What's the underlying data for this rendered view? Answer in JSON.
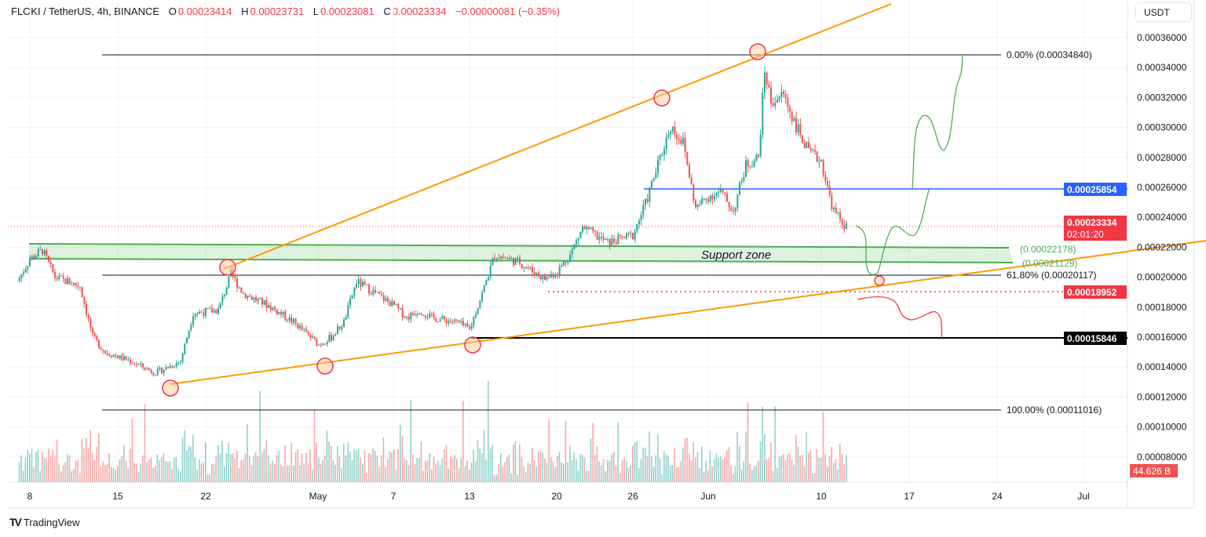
{
  "header": {
    "symbol": "FLOKI / TetherUS, 4h, BINANCE",
    "open_label": "O",
    "open": "0.00023414",
    "high_label": "H",
    "high": "0.00023731",
    "low_label": "L",
    "low": "0.00023081",
    "close_label": "C",
    "close": "0.00023334",
    "change": "−0.00000081 (−0.35%)"
  },
  "currency": "USDT",
  "price_axis": [
    "0.00036000",
    "0.00034000",
    "0.00032000",
    "0.00030000",
    "0.00028000",
    "0.00026000",
    "0.00024000",
    "0.00022000",
    "0.00020000",
    "0.00018000",
    "0.00016000",
    "0.00014000",
    "0.00012000",
    "0.00010000",
    "0.00008000"
  ],
  "price_tags": {
    "resistance": "0.00025854",
    "current": "0.00023334",
    "countdown": "02:01:20",
    "red_level": "0.00018952",
    "support": "0.00015846",
    "volume": "44.626 B"
  },
  "time_axis": [
    "8",
    "15",
    "22",
    "May",
    "7",
    "13",
    "20",
    "26",
    "Jun",
    "10",
    "17",
    "24",
    "Jul"
  ],
  "annotations": {
    "fib_0": "0.00% (0.00034840)",
    "fib_618": "61.80% (0.00020117)",
    "fib_100": "100.00% (0.00011016)",
    "zone_top": "(0.00022178)",
    "zone_bottom": "(0.00021129)",
    "zone_label": "Support zone"
  },
  "colors": {
    "up": "#26a69a",
    "down": "#ef5350",
    "trend": "#ff9800",
    "zone": "#4caf50",
    "resistance": "#2962ff",
    "tag_red": "#f23645"
  },
  "branding": "TradingView",
  "chart_data": {
    "type": "candlestick",
    "title": "FLOKI / TetherUS, 4h, BINANCE",
    "ylim": [
      6e-05,
      0.00037
    ],
    "approx_close_path": [
      [
        "04-07",
        0.000197
      ],
      [
        "04-08",
        0.000212
      ],
      [
        "04-09",
        0.000218
      ],
      [
        "04-10",
        0.0002
      ],
      [
        "04-12",
        0.000194
      ],
      [
        "04-13",
        0.00016
      ],
      [
        "04-14",
        0.00015
      ],
      [
        "04-16",
        0.000144
      ],
      [
        "04-18",
        0.000136
      ],
      [
        "04-20",
        0.000144
      ],
      [
        "04-21",
        0.000176
      ],
      [
        "04-23",
        0.000178
      ],
      [
        "04-24",
        0.000202
      ],
      [
        "04-25",
        0.000189
      ],
      [
        "04-27",
        0.000181
      ],
      [
        "04-29",
        0.00017
      ],
      [
        "05-01",
        0.000155
      ],
      [
        "05-02",
        0.00016
      ],
      [
        "05-03",
        0.00017
      ],
      [
        "05-04",
        0.000197
      ],
      [
        "05-05",
        0.000192
      ],
      [
        "05-07",
        0.000181
      ],
      [
        "05-08",
        0.000173
      ],
      [
        "05-09",
        0.000178
      ],
      [
        "05-10",
        0.000173
      ],
      [
        "05-12",
        0.00017
      ],
      [
        "05-13",
        0.000165
      ],
      [
        "05-14",
        0.000189
      ],
      [
        "05-15",
        0.000215
      ],
      [
        "05-17",
        0.00021
      ],
      [
        "05-18",
        0.000204
      ],
      [
        "05-19",
        0.000199
      ],
      [
        "05-20",
        0.000204
      ],
      [
        "05-21",
        0.000215
      ],
      [
        "05-22",
        0.000233
      ],
      [
        "05-23",
        0.000228
      ],
      [
        "05-24",
        0.000223
      ],
      [
        "05-26",
        0.000228
      ],
      [
        "05-27",
        0.000249
      ],
      [
        "05-28",
        0.000275
      ],
      [
        "05-29",
        0.000301
      ],
      [
        "05-30",
        0.00029
      ],
      [
        "05-31",
        0.000246
      ],
      [
        "06-01",
        0.000254
      ],
      [
        "06-02",
        0.000257
      ],
      [
        "06-03",
        0.000244
      ],
      [
        "06-04",
        0.000275
      ],
      [
        "06-05",
        0.00028
      ],
      [
        "06-05T12",
        0.000338
      ],
      [
        "06-06",
        0.000317
      ],
      [
        "06-07",
        0.000322
      ],
      [
        "06-08",
        0.000301
      ],
      [
        "06-09",
        0.000283
      ],
      [
        "06-10",
        0.000278
      ],
      [
        "06-10T12",
        0.000259
      ],
      [
        "06-11",
        0.000244
      ],
      [
        "06-12",
        0.00023334
      ]
    ],
    "horizontal_levels": [
      0.0003484,
      0.00025854,
      0.00023334,
      0.00022178,
      0.00021129,
      0.00020117,
      0.00018952,
      0.00015846,
      0.00011016
    ]
  }
}
